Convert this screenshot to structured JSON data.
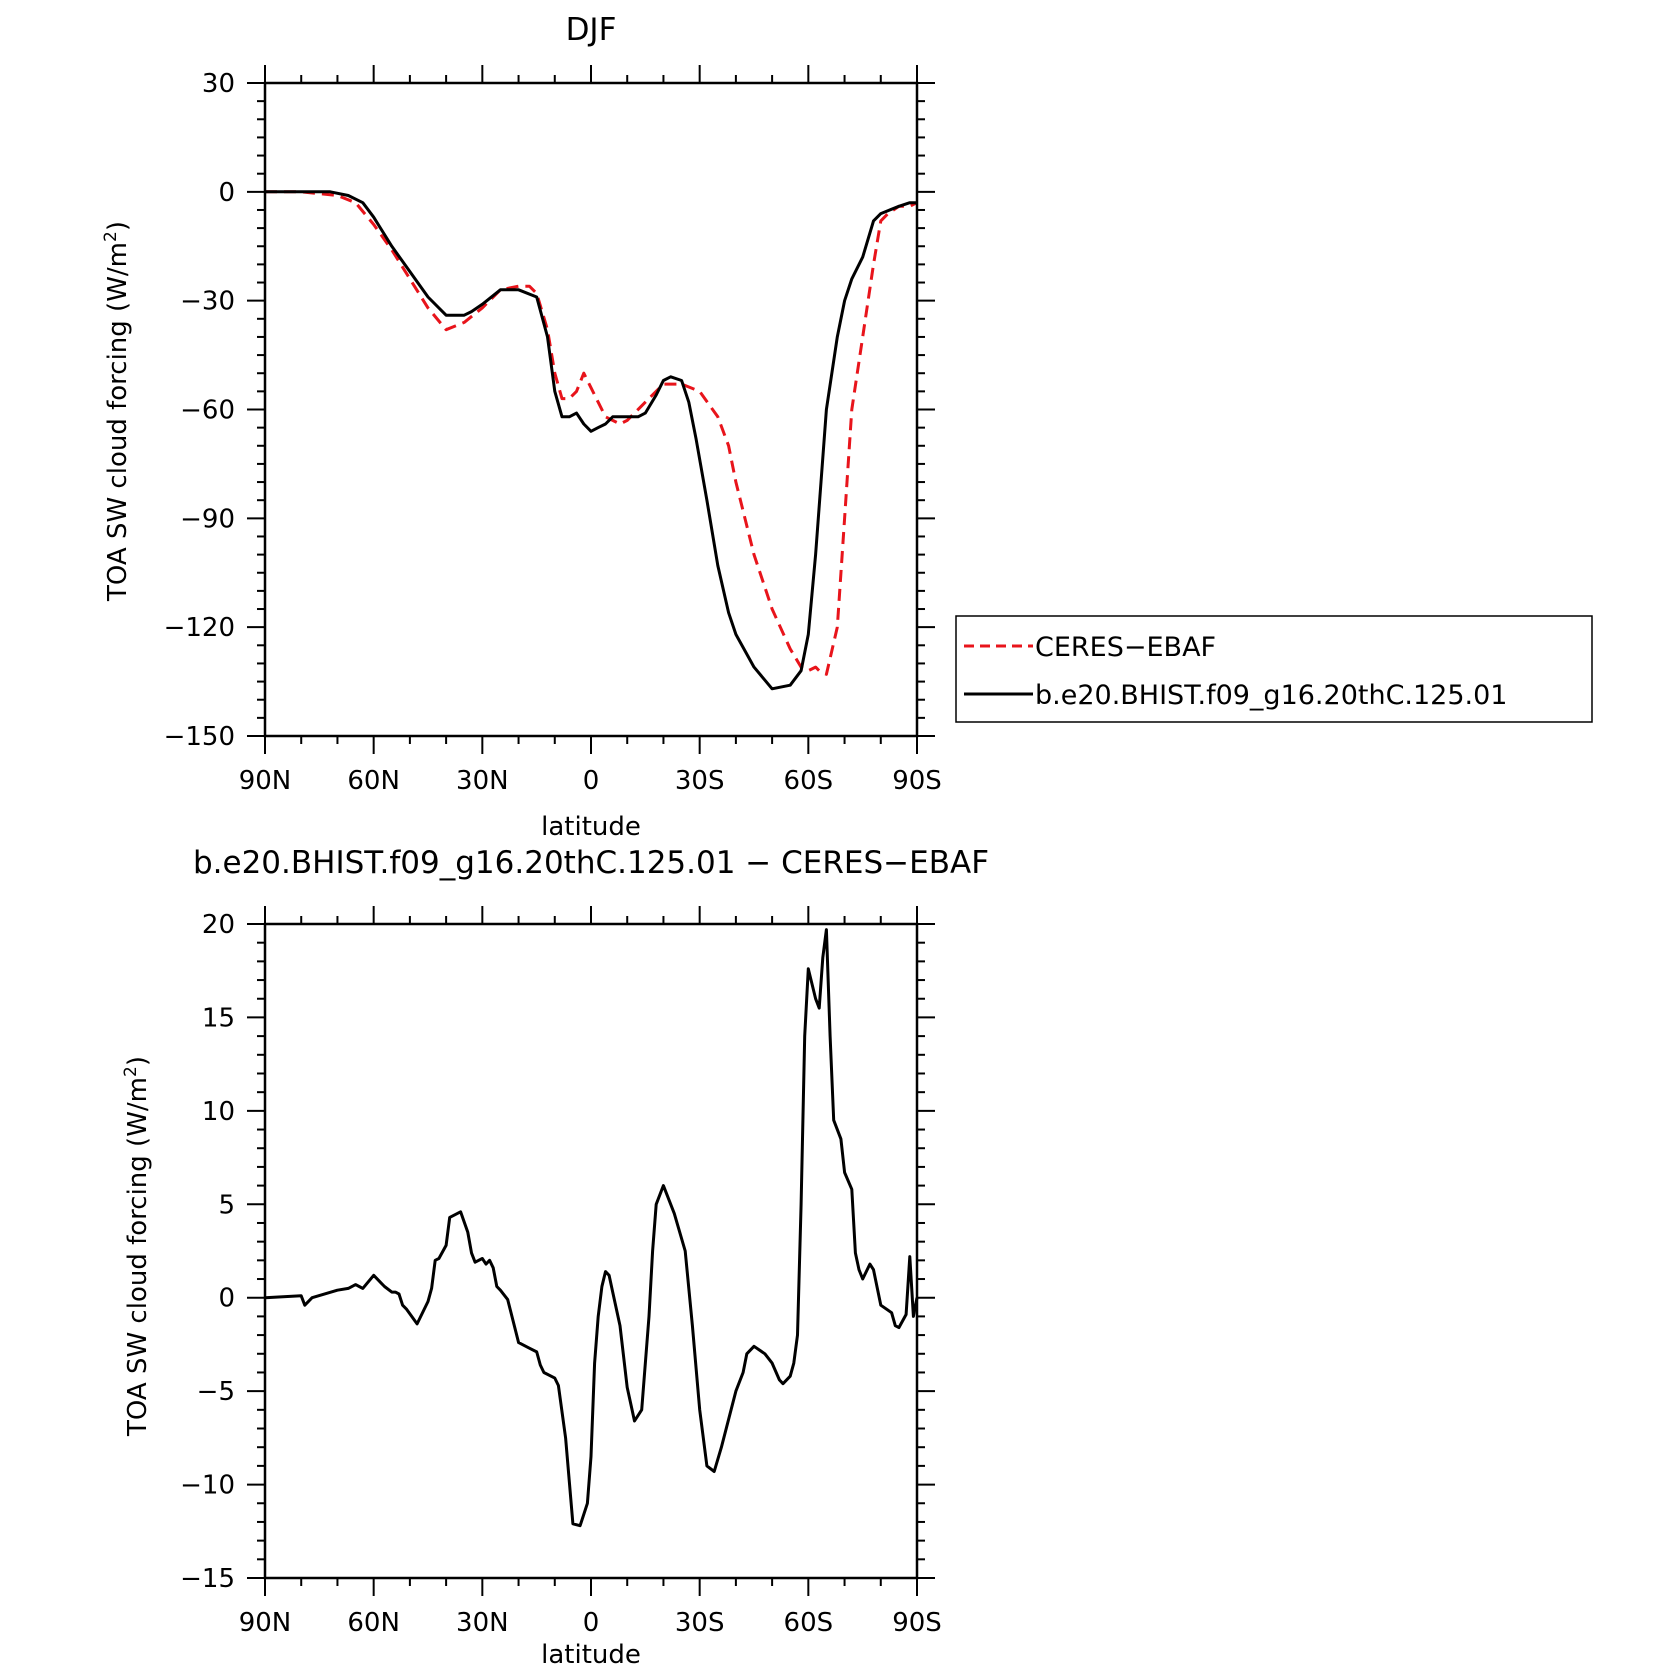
{
  "chart_data": [
    {
      "type": "line",
      "title": "DJF",
      "xlabel": "latitude",
      "ylabel": "TOA SW cloud forcing (W/m²)",
      "ylabel_parts": {
        "prefix": "TOA SW cloud forcing (W/m",
        "sup": "2",
        "suffix": ")"
      },
      "xlim": [
        90,
        -90
      ],
      "ylim": [
        -150,
        30
      ],
      "x_ticks": [
        90,
        60,
        30,
        0,
        -30,
        -60,
        -90
      ],
      "x_tick_labels": [
        "90N",
        "60N",
        "30N",
        "0",
        "30S",
        "60S",
        "90S"
      ],
      "y_ticks": [
        30,
        0,
        -30,
        -60,
        -90,
        -120,
        -150
      ],
      "y_tick_labels": [
        "30",
        "0",
        "−30",
        "−60",
        "−90",
        "−120",
        "−150"
      ],
      "legend_position": "outside-right",
      "series": [
        {
          "name": "CERES−EBAF",
          "color": "#e8141b",
          "dash": "dashed",
          "x": [
            90,
            80,
            70,
            65,
            60,
            55,
            50,
            45,
            40,
            35,
            30,
            25,
            20,
            17,
            15,
            12,
            10,
            8,
            6,
            4,
            2,
            0,
            -2,
            -4,
            -6,
            -8,
            -10,
            -15,
            -20,
            -25,
            -30,
            -35,
            -38,
            -40,
            -45,
            -50,
            -55,
            -58,
            -60,
            -62,
            -63,
            -65,
            -68,
            -70,
            -72,
            -75,
            -78,
            -80,
            -82,
            -85,
            -88,
            -90
          ],
          "y": [
            0,
            0,
            -1,
            -3,
            -9,
            -16,
            -24,
            -32,
            -38,
            -36,
            -32,
            -27,
            -26,
            -26,
            -28,
            -38,
            -50,
            -57,
            -57,
            -55,
            -50,
            -54,
            -58,
            -62,
            -63,
            -64,
            -63,
            -58,
            -53,
            -53,
            -55,
            -62,
            -70,
            -80,
            -100,
            -115,
            -126,
            -131,
            -132,
            -131,
            -132,
            -133,
            -120,
            -90,
            -60,
            -40,
            -20,
            -8,
            -6,
            -4,
            -4,
            -3
          ]
        },
        {
          "name": "b.e20.BHIST.f09_g16.20thC.125.01",
          "color": "#000000",
          "dash": "solid",
          "x": [
            90,
            80,
            72,
            67,
            63,
            60,
            55,
            50,
            45,
            40,
            37,
            35,
            33,
            30,
            25,
            20,
            15,
            12,
            10,
            8,
            6,
            4,
            2,
            0,
            -2,
            -4,
            -6,
            -8,
            -10,
            -13,
            -15,
            -18,
            -20,
            -22,
            -25,
            -27,
            -29,
            -32,
            -35,
            -38,
            -40,
            -45,
            -50,
            -55,
            -58,
            -60,
            -62,
            -65,
            -68,
            -70,
            -72,
            -75,
            -78,
            -80,
            -85,
            -88,
            -90
          ],
          "y": [
            0,
            0,
            0,
            -1,
            -3,
            -7,
            -15,
            -22,
            -29,
            -34,
            -34,
            -34,
            -33,
            -31,
            -27,
            -27,
            -29,
            -40,
            -55,
            -62,
            -62,
            -61,
            -64,
            -66,
            -65,
            -64,
            -62,
            -62,
            -62,
            -62,
            -61,
            -56,
            -52,
            -51,
            -52,
            -58,
            -68,
            -85,
            -103,
            -116,
            -122,
            -131,
            -137,
            -136,
            -132,
            -122,
            -100,
            -60,
            -40,
            -30,
            -24,
            -18,
            -8,
            -6,
            -4,
            -3,
            -3
          ]
        }
      ]
    },
    {
      "type": "line",
      "title": "b.e20.BHIST.f09_g16.20thC.125.01 − CERES−EBAF",
      "xlabel": "latitude",
      "ylabel": "TOA SW cloud forcing (W/m²)",
      "ylabel_parts": {
        "prefix": "TOA SW cloud forcing (W/m",
        "sup": "2",
        "suffix": ")"
      },
      "xlim": [
        90,
        -90
      ],
      "ylim": [
        -15,
        20
      ],
      "x_ticks": [
        90,
        60,
        30,
        0,
        -30,
        -60,
        -90
      ],
      "x_tick_labels": [
        "90N",
        "60N",
        "30N",
        "0",
        "30S",
        "60S",
        "90S"
      ],
      "y_ticks": [
        20,
        15,
        10,
        5,
        0,
        -5,
        -10,
        -15
      ],
      "y_tick_labels": [
        "20",
        "15",
        "10",
        "5",
        "0",
        "−5",
        "−10",
        "−15"
      ],
      "series": [
        {
          "name": "",
          "color": "#000000",
          "dash": "solid",
          "x": [
            90,
            80,
            79,
            77,
            70,
            67,
            65,
            64,
            63,
            60,
            57,
            55,
            54,
            53,
            52,
            51,
            48,
            45,
            44,
            43,
            42,
            40,
            39,
            36,
            34,
            33,
            32,
            30,
            29,
            28,
            27,
            26,
            25,
            23,
            20,
            17,
            15,
            14,
            13,
            10,
            9,
            7,
            5,
            3,
            1,
            0,
            -1,
            -2,
            -3,
            -4,
            -5,
            -6,
            -8,
            -10,
            -12,
            -14,
            -16,
            -17,
            -18,
            -20,
            -23,
            -26,
            -28,
            -30,
            -32,
            -34,
            -36,
            -40,
            -42,
            -43,
            -45,
            -48,
            -50,
            -52,
            -53,
            -55,
            -56,
            -57,
            -58,
            -59,
            -60,
            -62,
            -63,
            -64,
            -65,
            -66,
            -67,
            -69,
            -70,
            -72,
            -73,
            -74,
            -75,
            -77,
            -78,
            -80,
            -83,
            -84,
            -85,
            -87,
            -88,
            -89,
            -90
          ],
          "y": [
            0,
            0.1,
            -0.4,
            0,
            0.4,
            0.5,
            0.7,
            0.6,
            0.5,
            1.2,
            0.6,
            0.3,
            0.3,
            0.2,
            -0.4,
            -0.6,
            -1.4,
            -0.2,
            0.5,
            2.0,
            2.1,
            2.8,
            4.3,
            4.6,
            3.5,
            2.4,
            1.9,
            2.1,
            1.8,
            2.0,
            1.6,
            0.6,
            0.4,
            -0.1,
            -2.4,
            -2.7,
            -2.9,
            -3.6,
            -4.0,
            -4.3,
            -4.7,
            -7.5,
            -12.1,
            -12.2,
            -11.0,
            -8.5,
            -3.5,
            -1.0,
            0.6,
            1.4,
            1.2,
            0.3,
            -1.5,
            -4.8,
            -6.6,
            -6.0,
            -1.0,
            2.5,
            5.0,
            6.0,
            4.5,
            2.5,
            -1.5,
            -6.0,
            -9.0,
            -9.3,
            -8.0,
            -5.0,
            -4.0,
            -3.0,
            -2.6,
            -3.0,
            -3.5,
            -4.4,
            -4.6,
            -4.2,
            -3.5,
            -2.0,
            5.0,
            14.0,
            17.6,
            16.0,
            15.5,
            18.2,
            19.7,
            14.0,
            9.5,
            8.5,
            6.7,
            5.8,
            2.4,
            1.5,
            1.0,
            1.8,
            1.5,
            -0.4,
            -0.8,
            -1.5,
            -1.6,
            -0.9,
            2.2,
            -1.0,
            0
          ]
        }
      ]
    }
  ]
}
